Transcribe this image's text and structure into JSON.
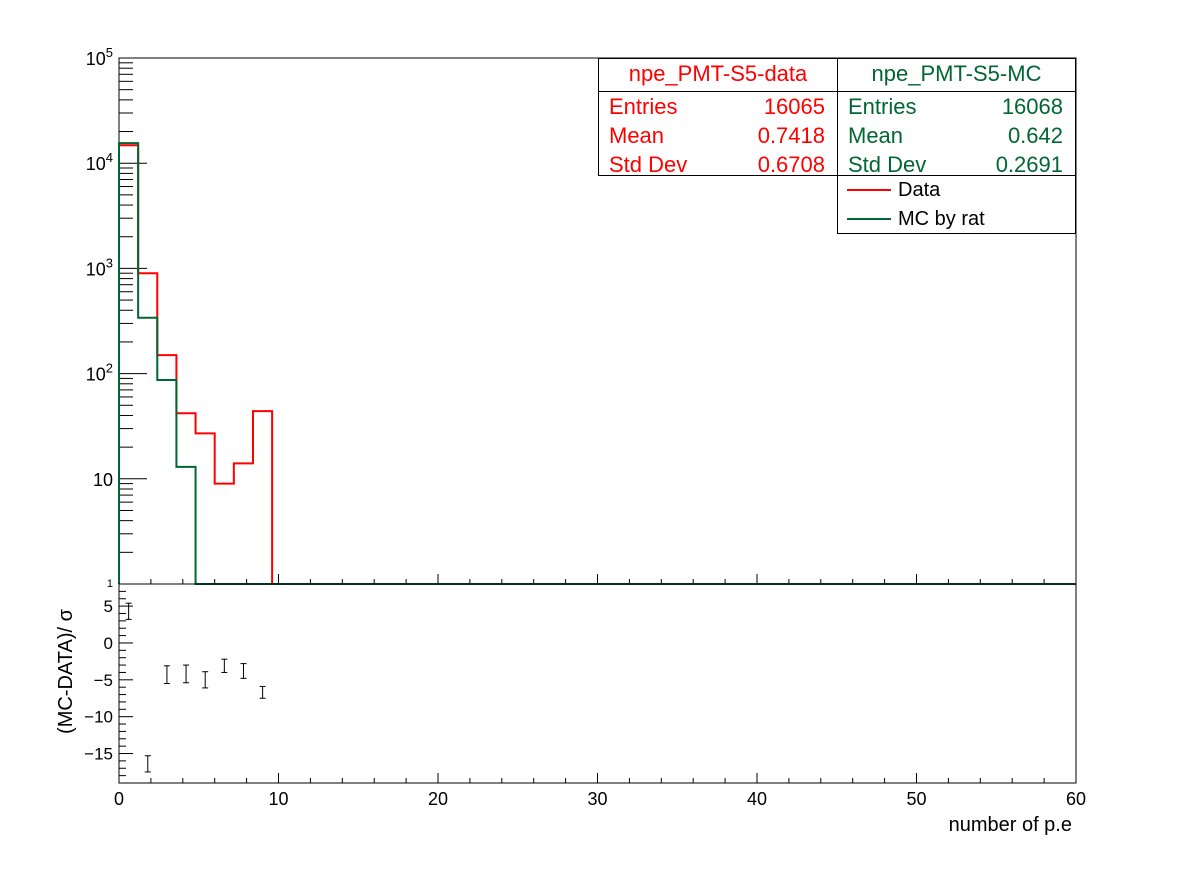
{
  "chart_data": [
    {
      "type": "histogram",
      "scale": "log",
      "xlim": [
        0,
        60
      ],
      "ylim": [
        1,
        100000
      ],
      "y_tick_labels": [
        "1",
        "10",
        "10^2",
        "10^3",
        "10^4",
        "10^5"
      ],
      "bin_width": 1.2,
      "series": [
        {
          "name": "Data",
          "color": "#ff0000",
          "bin_edges": [
            0,
            1.2,
            2.4,
            3.6,
            4.8,
            6.0,
            7.2,
            8.4,
            9.6
          ],
          "values": [
            14800,
            900,
            150,
            42,
            27,
            9,
            14,
            44
          ]
        },
        {
          "name": "MC by rat",
          "color": "#006633",
          "bin_edges": [
            0,
            1.2,
            2.4,
            3.6,
            4.8
          ],
          "values": [
            15500,
            340,
            87,
            13
          ]
        }
      ]
    },
    {
      "type": "errorbar",
      "ylabel": "(MC-DATA)/ σ",
      "xlabel": "number of p.e",
      "xlim": [
        0,
        60
      ],
      "ylim": [
        -19,
        8
      ],
      "x_ticks": [
        0,
        10,
        20,
        30,
        40,
        50,
        60
      ],
      "x_tick_labels": [
        "0",
        "10",
        "20",
        "30",
        "40",
        "50",
        "60"
      ],
      "y_ticks": [
        -15,
        -10,
        -5,
        0,
        5
      ],
      "y_tick_labels": [
        "−15",
        "−10",
        "−5",
        "0",
        "5"
      ],
      "points": [
        {
          "x": 1.2,
          "y": 4.3,
          "err": 1.1
        },
        {
          "x": 2.4,
          "y": -16.4,
          "err": 1.1
        },
        {
          "x": 3.6,
          "y": -4.3,
          "err": 1.2
        },
        {
          "x": 4.8,
          "y": -4.2,
          "err": 1.2
        },
        {
          "x": 6.0,
          "y": -5.0,
          "err": 1.1
        },
        {
          "x": 7.2,
          "y": -3.1,
          "err": 0.9
        },
        {
          "x": 8.4,
          "y": -3.8,
          "err": 1.0
        },
        {
          "x": 9.6,
          "y": -6.7,
          "err": 0.8
        }
      ]
    }
  ],
  "stats": {
    "data": {
      "title": "npe_PMT-S5-data",
      "entries_label": "Entries",
      "entries": "16065",
      "mean_label": "Mean",
      "mean": "0.7418",
      "std_label": "Std Dev",
      "std": "0.6708"
    },
    "mc": {
      "title": "npe_PMT-S5-MC",
      "entries_label": "Entries",
      "entries": "16068",
      "mean_label": "Mean",
      "mean": "0.642",
      "std_label": "Std Dev",
      "std": "0.2691"
    }
  },
  "legend": [
    {
      "label": "Data",
      "color": "#ff0000"
    },
    {
      "label": "MC by rat",
      "color": "#006633"
    }
  ]
}
